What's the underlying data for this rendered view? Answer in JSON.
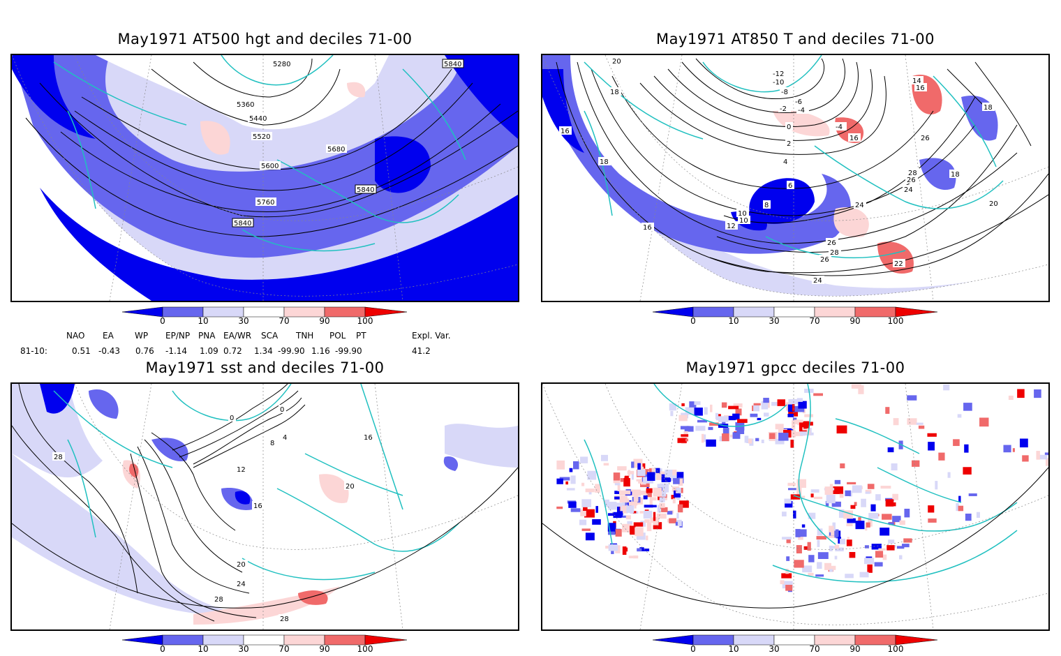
{
  "panels": [
    {
      "id": "p1",
      "title": "May1971 AT500 hgt and deciles 71-00",
      "contour_labels": [
        "5280",
        "5840",
        "5360",
        "5440",
        "5520",
        "5680",
        "5600",
        "5840",
        "5760",
        "5840"
      ]
    },
    {
      "id": "p2",
      "title": "May1971 AT850 T and deciles 71-00",
      "contour_labels": [
        "20",
        "18",
        "16",
        "18",
        "16",
        "-12",
        "-10",
        "-8",
        "-6",
        "-4",
        "-2",
        "0",
        "2",
        "4",
        "6",
        "8",
        "10",
        "10",
        "12",
        "14",
        "16",
        "26",
        "28",
        "26",
        "18",
        "24",
        "24",
        "26",
        "28",
        "26",
        "24",
        "22",
        "18",
        "20",
        "16",
        "-4"
      ]
    },
    {
      "id": "p3",
      "title": "May1971 sst and deciles 71-00",
      "contour_labels": [
        "28",
        "0",
        "0",
        "4",
        "8",
        "12",
        "16",
        "20",
        "16",
        "20",
        "24",
        "28",
        "28"
      ]
    },
    {
      "id": "p4",
      "title": "May1971 gpcc deciles 71-00",
      "contour_labels": []
    }
  ],
  "colorbar": {
    "ticks": [
      "0",
      "10",
      "30",
      "70",
      "90",
      "100"
    ],
    "colors": {
      "deep_blue": "#0000ee",
      "mid_blue": "#6666ee",
      "light_blue": "#d8d8f8",
      "white": "#ffffff",
      "light_red": "#fcd6d6",
      "mid_red": "#f06a6a",
      "deep_red": "#ee0000"
    }
  },
  "indices": {
    "headers": [
      "NAO",
      "EA",
      "WP",
      "EP/NP",
      "PNA",
      "EA/WR",
      "SCA",
      "TNH",
      "POL",
      "PT",
      "Expl. Var."
    ],
    "row_label": "81-10:",
    "values": [
      "0.51",
      "-0.43",
      "0.76",
      "-1.14",
      "1.09",
      "0.72",
      "1.34",
      "-99.90",
      "1.16",
      "-99.90",
      "41.2"
    ]
  },
  "colors": {
    "coast": "#20c0c0",
    "contour": "#000000",
    "grid": "#888888"
  }
}
